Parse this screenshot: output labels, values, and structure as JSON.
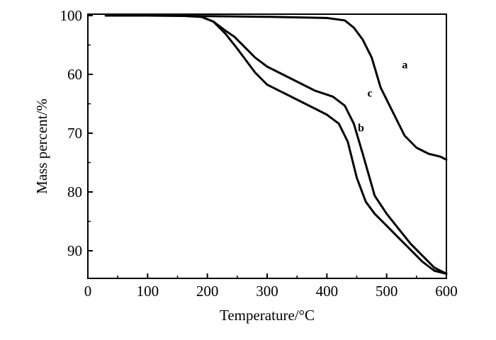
{
  "chart_data": {
    "type": "line",
    "title": "",
    "xlabel": "Temperature/°C",
    "ylabel": "Mass percent/%",
    "xlim": [
      0,
      600
    ],
    "ylim": [
      95,
      100.5
    ],
    "grid": false,
    "legend": "none",
    "x_ticks": [
      "0",
      "100",
      "200",
      "300",
      "400",
      "500",
      "600"
    ],
    "y_ticks": [
      {
        "value": 100,
        "label": "100"
      },
      {
        "value": 60,
        "label": "60"
      },
      {
        "value": 70,
        "label": "70"
      },
      {
        "value": 80,
        "label": "80"
      },
      {
        "value": 90,
        "label": "90"
      }
    ],
    "series": [
      {
        "name": "a",
        "color": "#000000",
        "points": [
          [
            30,
            100
          ],
          [
            100,
            100
          ],
          [
            200,
            99.9
          ],
          [
            300,
            99.8
          ],
          [
            400,
            99.6
          ],
          [
            430,
            99.2
          ],
          [
            445,
            98
          ],
          [
            460,
            96
          ],
          [
            475,
            93
          ],
          [
            490,
            88
          ],
          [
            510,
            84
          ],
          [
            530,
            80
          ],
          [
            550,
            78
          ],
          [
            570,
            77
          ],
          [
            590,
            76.5
          ],
          [
            600,
            76
          ]
        ]
      },
      {
        "name": "b",
        "color": "#000000",
        "points": [
          [
            30,
            100
          ],
          [
            100,
            100
          ],
          [
            150,
            100
          ],
          [
            190,
            99.8
          ],
          [
            210,
            99
          ],
          [
            230,
            97
          ],
          [
            250,
            94.5
          ],
          [
            265,
            92.5
          ],
          [
            280,
            90.5
          ],
          [
            300,
            88.5
          ],
          [
            340,
            86.5
          ],
          [
            380,
            84.5
          ],
          [
            400,
            83.5
          ],
          [
            420,
            82
          ],
          [
            435,
            79
          ],
          [
            450,
            73
          ],
          [
            465,
            69
          ],
          [
            480,
            67
          ],
          [
            500,
            65
          ],
          [
            520,
            63
          ],
          [
            540,
            61
          ],
          [
            560,
            59
          ],
          [
            580,
            57.5
          ],
          [
            600,
            57
          ]
        ]
      },
      {
        "name": "c",
        "color": "#000000",
        "points": [
          [
            30,
            100
          ],
          [
            100,
            100
          ],
          [
            150,
            100
          ],
          [
            190,
            99.8
          ],
          [
            210,
            99
          ],
          [
            230,
            97.5
          ],
          [
            245,
            96.5
          ],
          [
            260,
            95
          ],
          [
            280,
            93
          ],
          [
            300,
            91.5
          ],
          [
            340,
            89.5
          ],
          [
            380,
            87.5
          ],
          [
            410,
            86.5
          ],
          [
            430,
            85
          ],
          [
            445,
            82
          ],
          [
            460,
            77
          ],
          [
            480,
            70
          ],
          [
            500,
            67
          ],
          [
            520,
            64.5
          ],
          [
            540,
            62
          ],
          [
            560,
            60
          ],
          [
            580,
            58
          ],
          [
            600,
            57
          ]
        ]
      }
    ],
    "series_labels": [
      {
        "name": "a",
        "text": "a",
        "x": 476,
        "y": 90.5
      },
      {
        "name": "b",
        "text": "b",
        "x": 402,
        "y": 80
      },
      {
        "name": "c",
        "text": "c",
        "x": 418,
        "y": 85.8
      }
    ]
  }
}
